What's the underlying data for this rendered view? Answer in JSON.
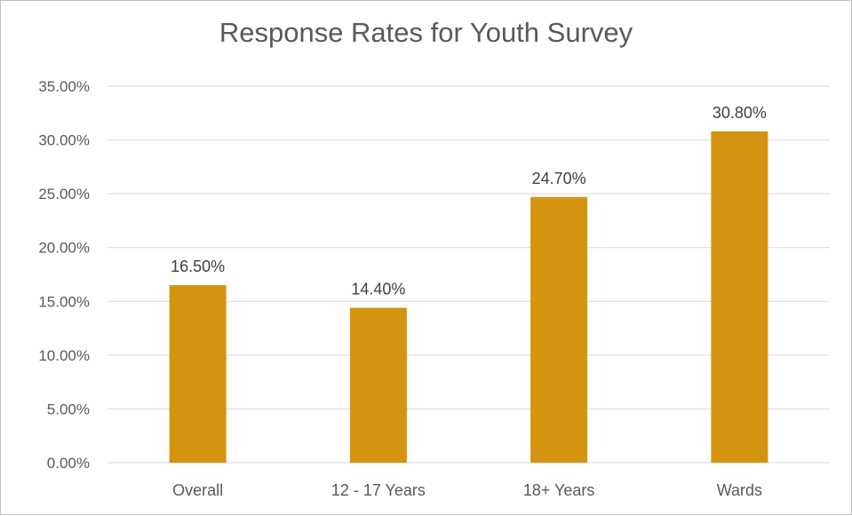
{
  "chart_data": {
    "type": "bar",
    "title": "Response Rates for Youth Survey",
    "categories": [
      "Overall",
      "12 - 17 Years",
      "18+ Years",
      "Wards"
    ],
    "values": [
      16.5,
      14.4,
      24.7,
      30.8
    ],
    "data_labels": [
      "16.50%",
      "14.40%",
      "24.70%",
      "30.80%"
    ],
    "y_ticks": [
      "0.00%",
      "5.00%",
      "10.00%",
      "15.00%",
      "20.00%",
      "25.00%",
      "30.00%",
      "35.00%"
    ],
    "y_tick_values": [
      0,
      5,
      10,
      15,
      20,
      25,
      30,
      35
    ],
    "ylim": [
      0,
      35
    ],
    "xlabel": "",
    "ylabel": "",
    "grid": true,
    "legend": "none",
    "bar_color": "#d4940f",
    "grid_color": "#d9d9d9"
  }
}
